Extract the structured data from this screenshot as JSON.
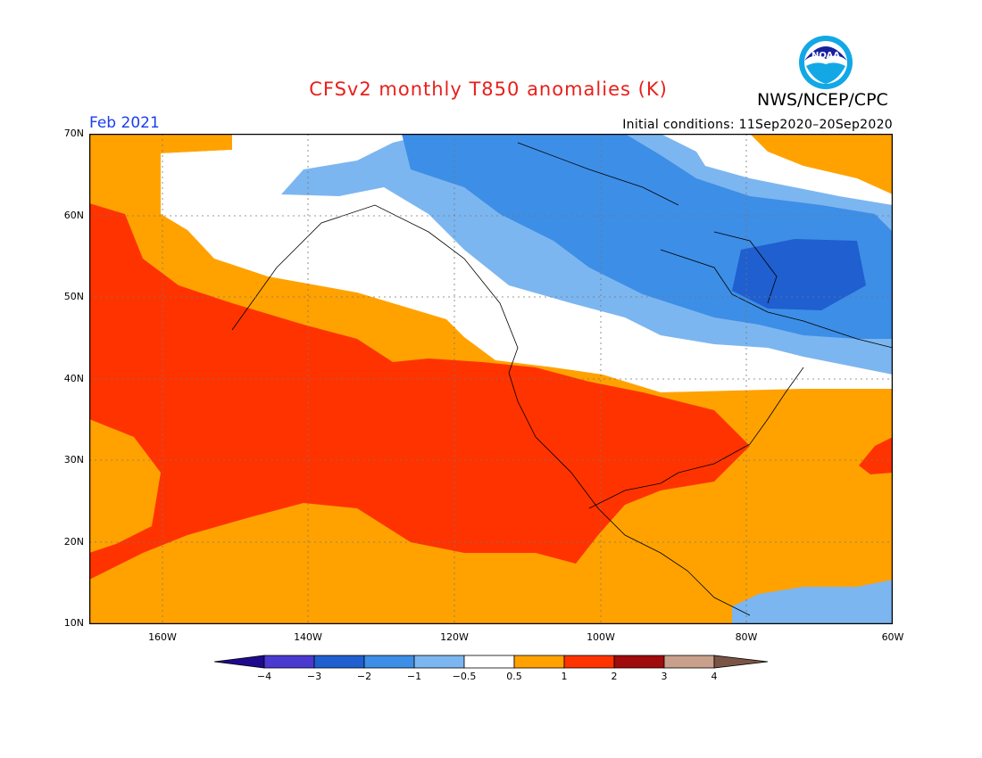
{
  "map": {
    "title": "CFSv2 monthly T850 anomalies (K)",
    "agency": "NWS/NCEP/CPC",
    "logo_text": "NOAA",
    "valid_month": "Feb 2021",
    "initial_conditions": "Initial conditions: 11Sep2020–20Sep2020",
    "lat_labels": [
      "70N",
      "60N",
      "50N",
      "40N",
      "30N",
      "20N",
      "10N"
    ],
    "lon_labels": [
      "160W",
      "140W",
      "120W",
      "100W",
      "80W",
      "60W"
    ],
    "colors": {
      "lt_m4": "#1e0a8c",
      "m4_m3": "#4a3ad0",
      "m3_m2": "#1f5fd0",
      "m2_m1": "#3d8ee6",
      "m1_m05": "#7cb6f0",
      "m05_05": "#ffffff",
      "p05_1": "#ffa200",
      "p1_2": "#ff3300",
      "p2_3": "#a00b0b",
      "p3_4": "#c8a08c",
      "gt_4": "#7a5545"
    },
    "colorbar": {
      "labels": [
        "−4",
        "−3",
        "−2",
        "−1",
        "−0.5",
        "0.5",
        "1",
        "2",
        "3",
        "4"
      ]
    }
  }
}
